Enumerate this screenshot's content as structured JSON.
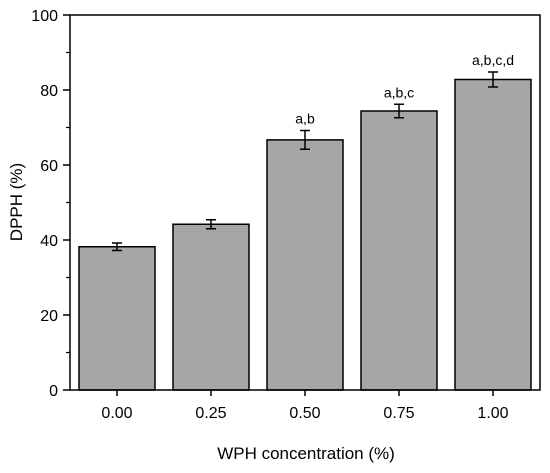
{
  "chart_data": {
    "type": "bar",
    "title": "",
    "xlabel": "WPH concentration (%)",
    "ylabel": "DPPH (%)",
    "ylim": [
      0,
      100
    ],
    "yticks": [
      0,
      20,
      40,
      60,
      80,
      100
    ],
    "categories": [
      "0.00",
      "0.25",
      "0.50",
      "0.75",
      "1.00"
    ],
    "values": [
      38.2,
      44.2,
      66.7,
      74.4,
      82.8
    ],
    "errors": [
      1.0,
      1.2,
      2.5,
      1.8,
      2.0
    ],
    "annotations": [
      "",
      "",
      "a,b",
      "a,b,c",
      "a,b,c,d"
    ],
    "grid": false,
    "legend": "none",
    "colors": {
      "bar_fill": "#a6a6a6",
      "bar_stroke": "#000000",
      "axis": "#000000"
    }
  }
}
